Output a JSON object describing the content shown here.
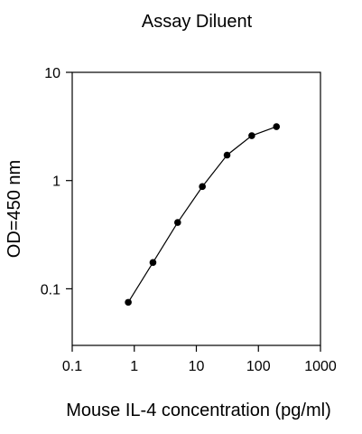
{
  "chart_data": {
    "type": "line",
    "title": "Assay Diluent",
    "xlabel": "Mouse IL-4 concentration (pg/ml)",
    "ylabel": "OD=450 nm",
    "xscale": "log",
    "yscale": "log",
    "xlim": [
      0.1,
      1000
    ],
    "ylim": [
      0.03,
      10
    ],
    "xticks": [
      {
        "value": 0.1,
        "label": "0.1"
      },
      {
        "value": 1,
        "label": "1"
      },
      {
        "value": 10,
        "label": "10"
      },
      {
        "value": 100,
        "label": "100"
      },
      {
        "value": 1000,
        "label": "1000"
      }
    ],
    "yticks": [
      {
        "value": 0.1,
        "label": "0.1"
      },
      {
        "value": 1,
        "label": "1"
      },
      {
        "value": 10,
        "label": "10"
      }
    ],
    "grid": false,
    "legend": "none",
    "series": [
      {
        "x": [
          0.8,
          2,
          5,
          12.5,
          31.25,
          78.13,
          195.31
        ],
        "y": [
          0.075,
          0.175,
          0.41,
          0.88,
          1.72,
          2.6,
          3.15
        ]
      }
    ],
    "colors": {
      "line": "#000000",
      "marker": "#000000",
      "axis": "#000000"
    }
  }
}
